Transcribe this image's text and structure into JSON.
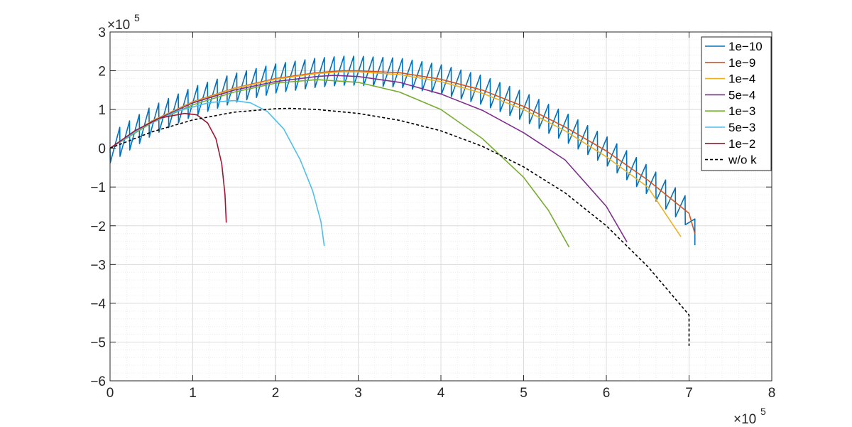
{
  "chart_data": {
    "type": "line",
    "title": "",
    "xlabel": "",
    "ylabel": "",
    "xlim": [
      0,
      800000
    ],
    "ylim": [
      -600000,
      300000
    ],
    "x_ticks": [
      0,
      100000,
      200000,
      300000,
      400000,
      500000,
      600000,
      700000,
      800000
    ],
    "y_ticks": [
      -600000,
      -500000,
      -400000,
      -300000,
      -200000,
      -100000,
      0,
      100000,
      200000,
      300000
    ],
    "x_tick_labels": [
      "0",
      "1",
      "2",
      "3",
      "4",
      "5",
      "6",
      "7",
      "8"
    ],
    "y_tick_labels": [
      "−6",
      "−5",
      "−4",
      "−3",
      "−2",
      "−1",
      "0",
      "1",
      "2",
      "3"
    ],
    "x_exponent": {
      "base": "×10",
      "power": "5"
    },
    "y_exponent": {
      "base": "×10",
      "power": "5"
    },
    "grid": true,
    "minor_grid": true,
    "legend_position": "top-right",
    "series": [
      {
        "name": "1e−10",
        "color": "#0072BD",
        "sawtooth": true,
        "x_end": 707000,
        "y_end": -220000,
        "teeth": 60,
        "amplitude": 50000,
        "x": [
          0,
          50000,
          100000,
          150000,
          200000,
          250000,
          280000,
          300000,
          350000,
          400000,
          450000,
          500000,
          550000,
          600000,
          650000,
          700000,
          707000
        ],
        "y": [
          0,
          70000,
          120000,
          155000,
          180000,
          195000,
          200000,
          200000,
          195000,
          178000,
          150000,
          108000,
          55000,
          -7000,
          -82000,
          -168000,
          -220000
        ]
      },
      {
        "name": "1e−9",
        "color": "#D95319",
        "sawtooth": false,
        "x": [
          0,
          50000,
          100000,
          150000,
          200000,
          250000,
          280000,
          300000,
          350000,
          400000,
          450000,
          500000,
          550000,
          600000,
          650000,
          700000,
          707000
        ],
        "y": [
          0,
          70000,
          120000,
          155000,
          180000,
          195000,
          200000,
          200000,
          195000,
          178000,
          150000,
          108000,
          55000,
          -7000,
          -82000,
          -168000,
          -220000
        ]
      },
      {
        "name": "1e−4",
        "color": "#EDB120",
        "sawtooth": false,
        "x": [
          0,
          50000,
          100000,
          150000,
          200000,
          250000,
          280000,
          300000,
          350000,
          400000,
          450000,
          500000,
          550000,
          600000,
          650000,
          690000
        ],
        "y": [
          0,
          70000,
          119000,
          154000,
          178000,
          193000,
          197000,
          197000,
          190000,
          172000,
          142000,
          100000,
          45000,
          -22000,
          -100000,
          -228000
        ]
      },
      {
        "name": "5e−4",
        "color": "#7E2F8E",
        "sawtooth": false,
        "x": [
          0,
          50000,
          100000,
          150000,
          200000,
          250000,
          270000,
          300000,
          350000,
          400000,
          450000,
          500000,
          550000,
          600000,
          625000
        ],
        "y": [
          0,
          68000,
          117000,
          150000,
          172000,
          185000,
          188000,
          185000,
          170000,
          140000,
          98000,
          40000,
          -30000,
          -150000,
          -242000
        ]
      },
      {
        "name": "1e−3",
        "color": "#77AC30",
        "sawtooth": false,
        "x": [
          0,
          50000,
          100000,
          150000,
          200000,
          250000,
          300000,
          350000,
          400000,
          450000,
          500000,
          530000,
          555000
        ],
        "y": [
          0,
          65000,
          112000,
          145000,
          168000,
          177000,
          170000,
          145000,
          100000,
          25000,
          -75000,
          -160000,
          -255000
        ]
      },
      {
        "name": "5e−3",
        "color": "#4DBEEE",
        "sawtooth": false,
        "x": [
          0,
          40000,
          80000,
          120000,
          150000,
          170000,
          190000,
          210000,
          230000,
          245000,
          255000,
          259000
        ],
        "y": [
          0,
          55000,
          95000,
          118000,
          123000,
          117000,
          95000,
          50000,
          -30000,
          -110000,
          -190000,
          -252000
        ]
      },
      {
        "name": "1e−2",
        "color": "#A2142F",
        "sawtooth": false,
        "x": [
          0,
          30000,
          60000,
          90000,
          105000,
          118000,
          128000,
          135000,
          139000,
          140500
        ],
        "y": [
          0,
          45000,
          78000,
          90000,
          86000,
          65000,
          25000,
          -40000,
          -120000,
          -192000
        ]
      },
      {
        "name": "w/o k",
        "color": "#000000",
        "dashed": true,
        "sawtooth": false,
        "x": [
          0,
          50000,
          100000,
          150000,
          200000,
          217000,
          250000,
          300000,
          350000,
          400000,
          450000,
          500000,
          550000,
          600000,
          650000,
          700000,
          700000
        ],
        "y": [
          0,
          42000,
          73000,
          93000,
          102000,
          103000,
          100000,
          90000,
          72000,
          45000,
          5000,
          -48000,
          -115000,
          -200000,
          -305000,
          -430000,
          -510000
        ]
      }
    ]
  }
}
